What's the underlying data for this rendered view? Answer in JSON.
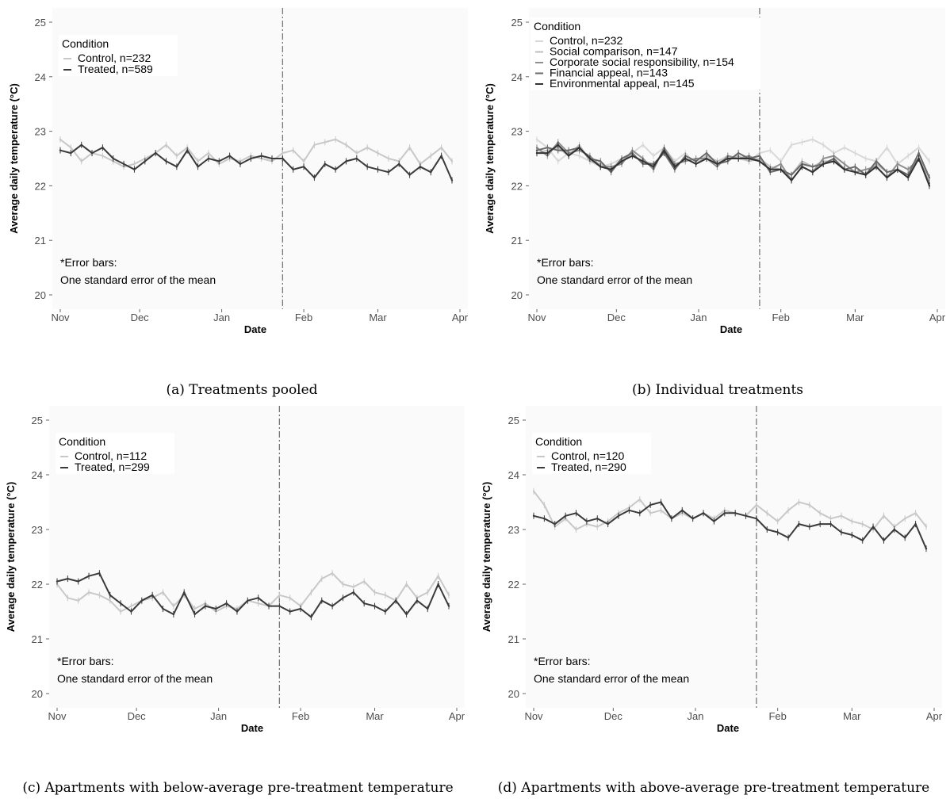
{
  "chart_data": [
    {
      "type": "line",
      "caption": "(a) Treatments pooled",
      "xlabel": "Date",
      "ylabel": "Average daily temperature (°C)",
      "ylim": [
        20,
        25
      ],
      "yticks": [
        20,
        21,
        22,
        23,
        24,
        25
      ],
      "x_tick_labels": [
        "Nov",
        "Dec",
        "Jan",
        "Feb",
        "Mar",
        "Apr"
      ],
      "x_range_days": [
        0,
        151
      ],
      "x_tick_days": [
        0,
        30,
        61,
        92,
        120,
        151
      ],
      "treatment_start_day": 84,
      "legend_title": "Condition",
      "note": [
        "*Error bars:",
        "One standard error of the mean"
      ],
      "series": [
        {
          "name": "Control, n=232",
          "color": "#c8c8c8",
          "x": [
            0,
            4,
            8,
            12,
            16,
            20,
            24,
            28,
            32,
            36,
            40,
            44,
            48,
            52,
            56,
            60,
            64,
            68,
            72,
            76,
            80,
            84,
            88,
            92,
            96,
            100,
            104,
            108,
            112,
            116,
            120,
            124,
            128,
            132,
            136,
            140,
            144,
            148
          ],
          "y": [
            22.85,
            22.7,
            22.45,
            22.6,
            22.55,
            22.45,
            22.35,
            22.4,
            22.5,
            22.6,
            22.75,
            22.55,
            22.7,
            22.45,
            22.6,
            22.4,
            22.5,
            22.45,
            22.55,
            22.5,
            22.45,
            22.6,
            22.65,
            22.45,
            22.75,
            22.8,
            22.85,
            22.75,
            22.6,
            22.7,
            22.6,
            22.5,
            22.45,
            22.7,
            22.4,
            22.55,
            22.7,
            22.45
          ]
        },
        {
          "name": "Treated, n=589",
          "color": "#3a3a3a",
          "x": [
            0,
            4,
            8,
            12,
            16,
            20,
            24,
            28,
            32,
            36,
            40,
            44,
            48,
            52,
            56,
            60,
            64,
            68,
            72,
            76,
            80,
            84,
            88,
            92,
            96,
            100,
            104,
            108,
            112,
            116,
            120,
            124,
            128,
            132,
            136,
            140,
            144,
            148
          ],
          "y": [
            22.65,
            22.6,
            22.75,
            22.6,
            22.7,
            22.5,
            22.4,
            22.3,
            22.45,
            22.6,
            22.45,
            22.35,
            22.65,
            22.35,
            22.5,
            22.45,
            22.55,
            22.4,
            22.5,
            22.55,
            22.5,
            22.5,
            22.3,
            22.35,
            22.15,
            22.4,
            22.3,
            22.45,
            22.5,
            22.35,
            22.3,
            22.25,
            22.4,
            22.2,
            22.35,
            22.25,
            22.55,
            22.1
          ]
        }
      ]
    },
    {
      "type": "line",
      "caption": "(b) Individual treatments",
      "xlabel": "Date",
      "ylabel": "Average daily temperature (°C)",
      "ylim": [
        20,
        25
      ],
      "yticks": [
        20,
        21,
        22,
        23,
        24,
        25
      ],
      "x_tick_labels": [
        "Nov",
        "Dec",
        "Jan",
        "Feb",
        "Mar",
        "Apr"
      ],
      "x_range_days": [
        0,
        151
      ],
      "x_tick_days": [
        0,
        30,
        61,
        92,
        120,
        151
      ],
      "treatment_start_day": 84,
      "legend_title": "Condition",
      "note": [
        "*Error bars:",
        "One standard error of the mean"
      ],
      "series": [
        {
          "name": "Control, n=232",
          "color": "#d8d8d8",
          "x": [
            0,
            4,
            8,
            12,
            16,
            20,
            24,
            28,
            32,
            36,
            40,
            44,
            48,
            52,
            56,
            60,
            64,
            68,
            72,
            76,
            80,
            84,
            88,
            92,
            96,
            100,
            104,
            108,
            112,
            116,
            120,
            124,
            128,
            132,
            136,
            140,
            144,
            148
          ],
          "y": [
            22.85,
            22.7,
            22.45,
            22.6,
            22.55,
            22.45,
            22.35,
            22.4,
            22.5,
            22.6,
            22.75,
            22.55,
            22.7,
            22.45,
            22.6,
            22.4,
            22.5,
            22.45,
            22.55,
            22.5,
            22.45,
            22.6,
            22.65,
            22.45,
            22.75,
            22.8,
            22.85,
            22.75,
            22.6,
            22.7,
            22.6,
            22.5,
            22.45,
            22.7,
            22.4,
            22.55,
            22.7,
            22.45
          ]
        },
        {
          "name": "Social comparison, n=147",
          "color": "#bdbdbd",
          "x": [
            0,
            4,
            8,
            12,
            16,
            20,
            24,
            28,
            32,
            36,
            40,
            44,
            48,
            52,
            56,
            60,
            64,
            68,
            72,
            76,
            80,
            84,
            88,
            92,
            96,
            100,
            104,
            108,
            112,
            116,
            120,
            124,
            128,
            132,
            136,
            140,
            144,
            148
          ],
          "y": [
            22.6,
            22.65,
            22.7,
            22.55,
            22.75,
            22.45,
            22.4,
            22.3,
            22.5,
            22.55,
            22.45,
            22.4,
            22.6,
            22.35,
            22.5,
            22.4,
            22.55,
            22.45,
            22.5,
            22.55,
            22.45,
            22.5,
            22.35,
            22.3,
            22.2,
            22.45,
            22.35,
            22.45,
            22.45,
            22.3,
            22.35,
            22.2,
            22.4,
            22.25,
            22.3,
            22.2,
            22.5,
            22.15
          ]
        },
        {
          "name": "Corporate social responsibility, n=154",
          "color": "#8f8f8f",
          "x": [
            0,
            4,
            8,
            12,
            16,
            20,
            24,
            28,
            32,
            36,
            40,
            44,
            48,
            52,
            56,
            60,
            64,
            68,
            72,
            76,
            80,
            84,
            88,
            92,
            96,
            100,
            104,
            108,
            112,
            116,
            120,
            124,
            128,
            132,
            136,
            140,
            144,
            148
          ],
          "y": [
            22.7,
            22.55,
            22.8,
            22.6,
            22.65,
            22.55,
            22.35,
            22.35,
            22.4,
            22.65,
            22.5,
            22.3,
            22.7,
            22.4,
            22.45,
            22.5,
            22.5,
            22.35,
            22.55,
            22.5,
            22.55,
            22.45,
            22.3,
            22.4,
            22.1,
            22.35,
            22.25,
            22.5,
            22.55,
            22.4,
            22.25,
            22.3,
            22.35,
            22.15,
            22.4,
            22.3,
            22.5,
            22.05
          ]
        },
        {
          "name": "Financial appeal, n=143",
          "color": "#6a6a6a",
          "x": [
            0,
            4,
            8,
            12,
            16,
            20,
            24,
            28,
            32,
            36,
            40,
            44,
            48,
            52,
            56,
            60,
            64,
            68,
            72,
            76,
            80,
            84,
            88,
            92,
            96,
            100,
            104,
            108,
            112,
            116,
            120,
            124,
            128,
            132,
            136,
            140,
            144,
            148
          ],
          "y": [
            22.65,
            22.7,
            22.65,
            22.65,
            22.7,
            22.5,
            22.45,
            22.25,
            22.5,
            22.6,
            22.4,
            22.4,
            22.6,
            22.3,
            22.55,
            22.45,
            22.6,
            22.4,
            22.45,
            22.6,
            22.5,
            22.55,
            22.25,
            22.3,
            22.2,
            22.4,
            22.35,
            22.4,
            22.5,
            22.3,
            22.35,
            22.2,
            22.45,
            22.25,
            22.3,
            22.2,
            22.6,
            22.15
          ]
        },
        {
          "name": "Environmental appeal, n=145",
          "color": "#333333",
          "x": [
            0,
            4,
            8,
            12,
            16,
            20,
            24,
            28,
            32,
            36,
            40,
            44,
            48,
            52,
            56,
            60,
            64,
            68,
            72,
            76,
            80,
            84,
            88,
            92,
            96,
            100,
            104,
            108,
            112,
            116,
            120,
            124,
            128,
            132,
            136,
            140,
            144,
            148
          ],
          "y": [
            22.6,
            22.6,
            22.75,
            22.55,
            22.7,
            22.5,
            22.35,
            22.3,
            22.45,
            22.55,
            22.45,
            22.35,
            22.65,
            22.35,
            22.5,
            22.4,
            22.5,
            22.4,
            22.5,
            22.5,
            22.5,
            22.45,
            22.3,
            22.3,
            22.1,
            22.35,
            22.25,
            22.4,
            22.45,
            22.3,
            22.25,
            22.2,
            22.35,
            22.15,
            22.3,
            22.15,
            22.5,
            22.0
          ]
        }
      ]
    },
    {
      "type": "line",
      "caption": "(c) Apartments with below-average pre-treatment temperature",
      "xlabel": "Date",
      "ylabel": "Average daily temperature (°C)",
      "ylim": [
        20,
        25
      ],
      "yticks": [
        20,
        21,
        22,
        23,
        24,
        25
      ],
      "x_tick_labels": [
        "Nov",
        "Dec",
        "Jan",
        "Feb",
        "Mar",
        "Apr"
      ],
      "x_range_days": [
        0,
        151
      ],
      "x_tick_days": [
        0,
        30,
        61,
        92,
        120,
        151
      ],
      "treatment_start_day": 84,
      "legend_title": "Condition",
      "note": [
        "*Error bars:",
        "One standard error of the mean"
      ],
      "series": [
        {
          "name": "Control, n=112",
          "color": "#c8c8c8",
          "x": [
            0,
            4,
            8,
            12,
            16,
            20,
            24,
            28,
            32,
            36,
            40,
            44,
            48,
            52,
            56,
            60,
            64,
            68,
            72,
            76,
            80,
            84,
            88,
            92,
            96,
            100,
            104,
            108,
            112,
            116,
            120,
            124,
            128,
            132,
            136,
            140,
            144,
            148
          ],
          "y": [
            22.0,
            21.75,
            21.7,
            21.85,
            21.8,
            21.7,
            21.5,
            21.6,
            21.7,
            21.75,
            21.85,
            21.6,
            21.8,
            21.55,
            21.65,
            21.5,
            21.6,
            21.55,
            21.7,
            21.65,
            21.6,
            21.8,
            21.75,
            21.6,
            21.85,
            22.1,
            22.2,
            22.0,
            21.95,
            22.05,
            21.85,
            21.8,
            21.7,
            22.0,
            21.75,
            21.85,
            22.15,
            21.8
          ]
        },
        {
          "name": "Treated, n=299",
          "color": "#3a3a3a",
          "x": [
            0,
            4,
            8,
            12,
            16,
            20,
            24,
            28,
            32,
            36,
            40,
            44,
            48,
            52,
            56,
            60,
            64,
            68,
            72,
            76,
            80,
            84,
            88,
            92,
            96,
            100,
            104,
            108,
            112,
            116,
            120,
            124,
            128,
            132,
            136,
            140,
            144,
            148
          ],
          "y": [
            22.05,
            22.1,
            22.05,
            22.15,
            22.2,
            21.8,
            21.65,
            21.5,
            21.7,
            21.8,
            21.55,
            21.45,
            21.85,
            21.45,
            21.6,
            21.55,
            21.65,
            21.5,
            21.7,
            21.75,
            21.6,
            21.6,
            21.5,
            21.55,
            21.4,
            21.7,
            21.6,
            21.75,
            21.85,
            21.65,
            21.6,
            21.5,
            21.7,
            21.45,
            21.7,
            21.55,
            22.0,
            21.6
          ]
        }
      ]
    },
    {
      "type": "line",
      "caption": "(d) Apartments with above-average pre-treatment temperature",
      "xlabel": "Date",
      "ylabel": "Average daily temperature (°C)",
      "ylim": [
        20,
        25
      ],
      "yticks": [
        20,
        21,
        22,
        23,
        24,
        25
      ],
      "x_tick_labels": [
        "Nov",
        "Dec",
        "Jan",
        "Feb",
        "Mar",
        "Apr"
      ],
      "x_range_days": [
        0,
        151
      ],
      "x_tick_days": [
        0,
        30,
        61,
        92,
        120,
        151
      ],
      "treatment_start_day": 84,
      "legend_title": "Condition",
      "note": [
        "*Error bars:",
        "One standard error of the mean"
      ],
      "series": [
        {
          "name": "Control, n=120",
          "color": "#c8c8c8",
          "x": [
            0,
            4,
            8,
            12,
            16,
            20,
            24,
            28,
            32,
            36,
            40,
            44,
            48,
            52,
            56,
            60,
            64,
            68,
            72,
            76,
            80,
            84,
            88,
            92,
            96,
            100,
            104,
            108,
            112,
            116,
            120,
            124,
            128,
            132,
            136,
            140,
            144,
            148
          ],
          "y": [
            23.7,
            23.45,
            23.05,
            23.2,
            23.0,
            23.1,
            23.05,
            23.15,
            23.3,
            23.4,
            23.55,
            23.3,
            23.35,
            23.2,
            23.3,
            23.2,
            23.3,
            23.2,
            23.35,
            23.3,
            23.25,
            23.45,
            23.3,
            23.15,
            23.35,
            23.5,
            23.45,
            23.3,
            23.2,
            23.25,
            23.15,
            23.1,
            23.0,
            23.25,
            23.05,
            23.2,
            23.3,
            23.05
          ]
        },
        {
          "name": "Treated, n=290",
          "color": "#3a3a3a",
          "x": [
            0,
            4,
            8,
            12,
            16,
            20,
            24,
            28,
            32,
            36,
            40,
            44,
            48,
            52,
            56,
            60,
            64,
            68,
            72,
            76,
            80,
            84,
            88,
            92,
            96,
            100,
            104,
            108,
            112,
            116,
            120,
            124,
            128,
            132,
            136,
            140,
            144,
            148
          ],
          "y": [
            23.25,
            23.2,
            23.1,
            23.25,
            23.3,
            23.15,
            23.2,
            23.1,
            23.25,
            23.35,
            23.3,
            23.45,
            23.5,
            23.2,
            23.35,
            23.2,
            23.3,
            23.15,
            23.3,
            23.3,
            23.25,
            23.2,
            23.0,
            22.95,
            22.85,
            23.1,
            23.05,
            23.1,
            23.1,
            22.95,
            22.9,
            22.8,
            23.05,
            22.8,
            23.0,
            22.85,
            23.1,
            22.65
          ]
        }
      ]
    }
  ]
}
